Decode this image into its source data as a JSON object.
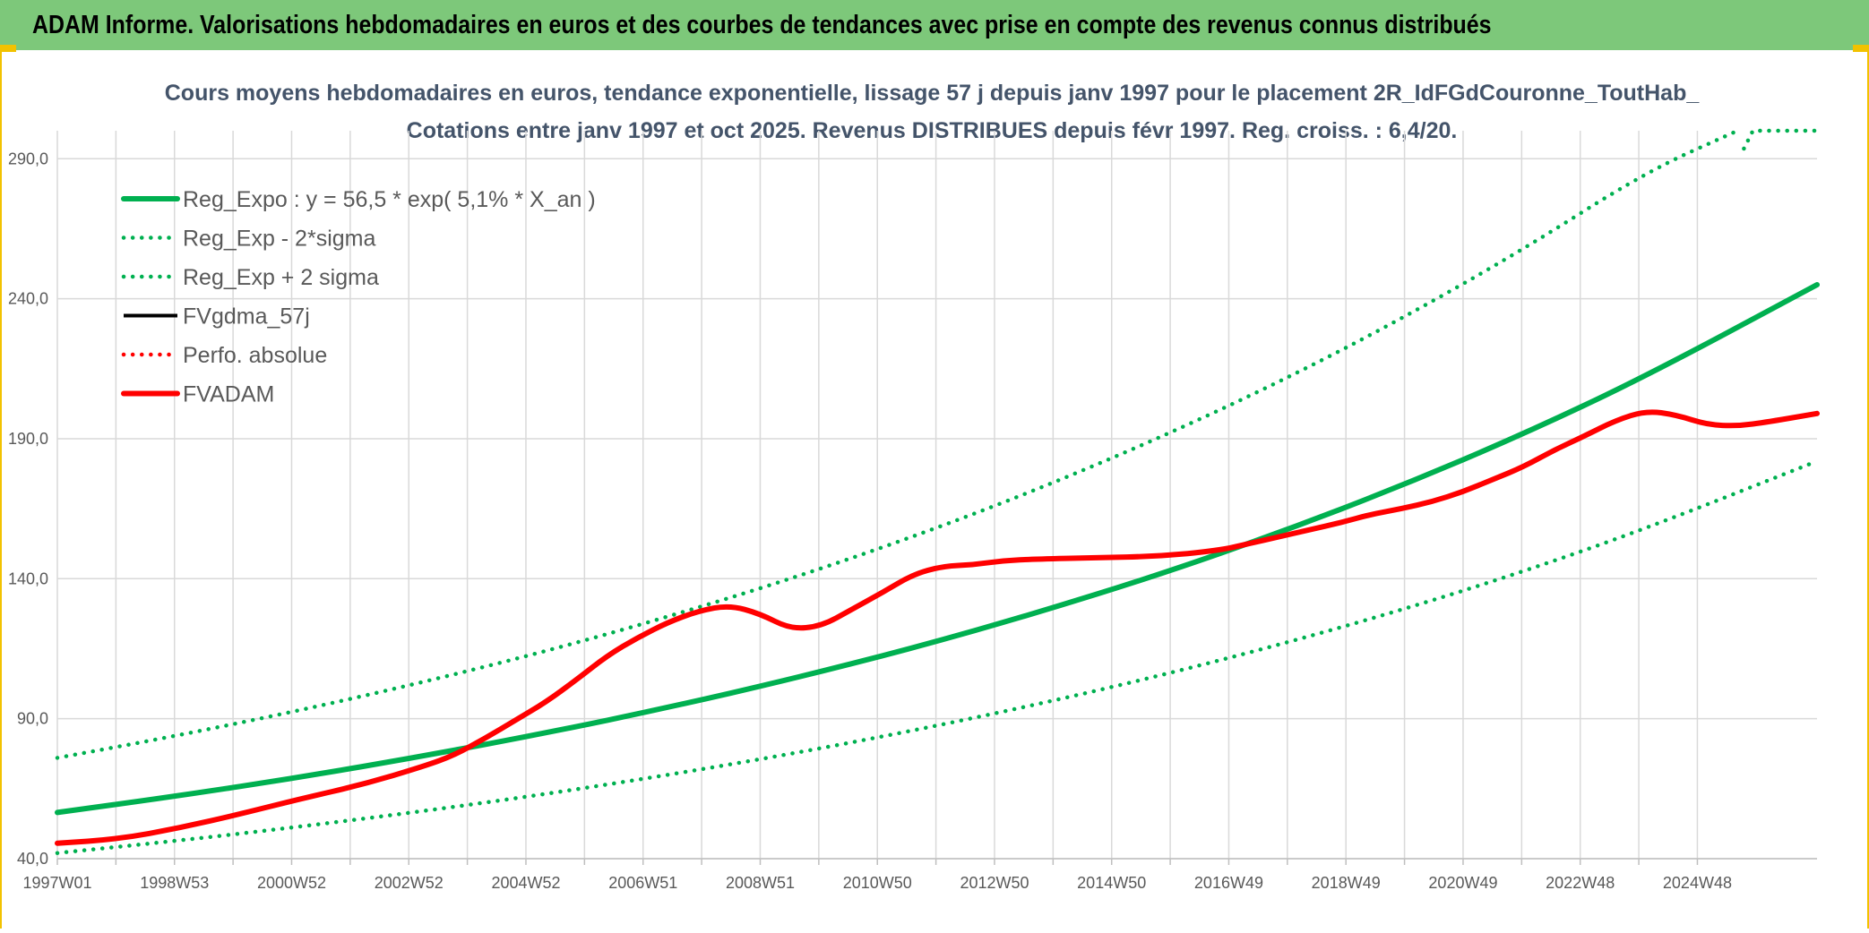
{
  "header": {
    "title": "ADAM Informe. Valorisations hebdomadaires en euros et des courbes de tendances avec prise en compte des revenus connus distribués"
  },
  "colors": {
    "header_bg": "#7dc87a",
    "trend_green": "#00b050",
    "price_red": "#ff0000",
    "black": "#000000",
    "grid": "#d9d9d9"
  },
  "chart_data": {
    "type": "line",
    "title": "Cours moyens hebdomadaires en euros, tendance exponentielle, lissage 57 j depuis janv 1997 pour le placement 2R_IdFGdCouronne_ToutHab_",
    "subtitle": "Cotations entre janv 1997 et oct 2025. Revenus DISTRIBUES depuis févr 1997. Reg. croiss. : 6,4/20.",
    "xlabel": "",
    "ylabel": "",
    "ylim": [
      40,
      300
    ],
    "yticks": [
      "40,0",
      "90,0",
      "140,0",
      "190,0",
      "240,0",
      "290,0"
    ],
    "yticks_values": [
      40,
      90,
      140,
      190,
      240,
      290
    ],
    "xticks": [
      "1997W01",
      "1998W53",
      "2000W52",
      "2002W52",
      "2004W52",
      "2006W51",
      "2008W51",
      "2010W50",
      "2012W50",
      "2014W50",
      "2016W49",
      "2018W49",
      "2020W49",
      "2022W48",
      "2024W48"
    ],
    "xlim": [
      1997.0,
      2025.8
    ],
    "grid": true,
    "legend_position": "top-left",
    "series": [
      {
        "name": "Reg_Expo : y = 56,5 * exp( 5,1% *  X_an )",
        "style": "solid-thick",
        "color": "#00b050",
        "x": [
          1997,
          1999,
          2001,
          2003,
          2005,
          2007,
          2009,
          2011,
          2013,
          2015,
          2017,
          2019,
          2021,
          2023,
          2025.8
        ],
        "values": [
          56.5,
          62.5,
          69.2,
          76.7,
          84.9,
          94.0,
          104.1,
          115.2,
          127.6,
          141.2,
          156.4,
          173.2,
          191.7,
          212.3,
          245.0
        ]
      },
      {
        "name": "Reg_Exp - 2*sigma",
        "style": "dotted",
        "color": "#00b050",
        "x": [
          1997,
          1999,
          2001,
          2003,
          2005,
          2007,
          2009,
          2011,
          2013,
          2015,
          2017,
          2019,
          2021,
          2023,
          2025.8
        ],
        "values": [
          42.0,
          46.5,
          51.5,
          57.0,
          63.1,
          69.9,
          77.4,
          85.7,
          94.9,
          105.1,
          116.4,
          128.8,
          142.6,
          157.9,
          182.0
        ]
      },
      {
        "name": "Reg_Exp + 2 sigma",
        "style": "dotted",
        "color": "#00b050",
        "x": [
          1997,
          1999,
          2001,
          2003,
          2005,
          2007,
          2009,
          2011,
          2013,
          2015,
          2017,
          2019,
          2021,
          2023,
          2024.5
        ],
        "values": [
          76.0,
          84.1,
          93.1,
          103.1,
          114.1,
          126.4,
          139.9,
          154.9,
          171.5,
          189.9,
          210.2,
          232.8,
          257.7,
          285.3,
          300.0
        ]
      },
      {
        "name": "FVgdma_57j",
        "style": "solid",
        "color": "#000000",
        "x": [
          1997,
          1998,
          1999,
          2000,
          2001,
          2002,
          2003,
          2003.5,
          2004,
          2004.5,
          2005,
          2005.5,
          2006,
          2006.5,
          2007,
          2007.5,
          2008,
          2008.5,
          2009,
          2009.5,
          2010,
          2010.5,
          2011,
          2011.5,
          2012,
          2012.5,
          2013,
          2014,
          2015,
          2016,
          2016.5,
          2017,
          2017.5,
          2018,
          2018.5,
          2019,
          2019.5,
          2020,
          2020.5,
          2021,
          2021.5,
          2022,
          2022.5,
          2023,
          2023.5,
          2024,
          2024.5,
          2025,
          2025.8
        ],
        "values": [
          45.5,
          47.0,
          51.0,
          56.0,
          61.5,
          66.5,
          73.0,
          77.0,
          83.0,
          89.5,
          96.0,
          104.0,
          112.5,
          119.0,
          124.5,
          128.5,
          130.5,
          127.5,
          122.0,
          123.0,
          129.0,
          135.0,
          141.5,
          144.5,
          145.0,
          146.5,
          147.0,
          147.5,
          148.0,
          150.0,
          152.5,
          155.0,
          157.5,
          160.0,
          163.0,
          165.0,
          167.5,
          171.0,
          175.5,
          180.0,
          186.0,
          191.0,
          196.5,
          200.0,
          198.5,
          195.0,
          194.5,
          196.0,
          199.0
        ]
      },
      {
        "name": "Perfo. absolue",
        "style": "dotted",
        "color": "#ff0000",
        "x": [
          1997,
          1998,
          1999,
          2000,
          2001,
          2002,
          2003,
          2003.5,
          2004,
          2004.5,
          2005,
          2005.5,
          2006,
          2006.5,
          2007,
          2007.5,
          2008,
          2008.5,
          2009,
          2009.5,
          2010,
          2010.5,
          2011,
          2011.5,
          2012,
          2012.5,
          2013,
          2014,
          2015,
          2016,
          2016.5,
          2017,
          2017.5,
          2018,
          2018.5,
          2019,
          2019.5,
          2020,
          2020.5,
          2021,
          2021.5,
          2022,
          2022.5,
          2023,
          2023.5,
          2024,
          2024.5,
          2025,
          2025.8
        ],
        "values": [
          45.5,
          47.0,
          51.0,
          56.0,
          61.5,
          66.5,
          73.0,
          77.0,
          83.0,
          89.5,
          96.0,
          104.0,
          112.5,
          119.0,
          124.5,
          128.5,
          130.5,
          127.5,
          122.0,
          123.0,
          129.0,
          135.0,
          141.5,
          144.5,
          145.0,
          146.5,
          147.0,
          147.5,
          148.0,
          150.0,
          152.5,
          155.0,
          157.5,
          160.0,
          163.0,
          165.0,
          167.5,
          171.0,
          175.5,
          180.0,
          186.0,
          191.0,
          196.5,
          200.0,
          198.5,
          195.0,
          194.5,
          196.0,
          199.0
        ]
      },
      {
        "name": "FVADAM",
        "style": "solid-thick",
        "color": "#ff0000",
        "x": [
          1997,
          1998,
          1999,
          2000,
          2001,
          2002,
          2003,
          2003.5,
          2004,
          2004.5,
          2005,
          2005.5,
          2006,
          2006.5,
          2007,
          2007.5,
          2008,
          2008.5,
          2009,
          2009.5,
          2010,
          2010.5,
          2011,
          2011.5,
          2012,
          2012.5,
          2013,
          2014,
          2015,
          2016,
          2016.5,
          2017,
          2017.5,
          2018,
          2018.5,
          2019,
          2019.5,
          2020,
          2020.5,
          2021,
          2021.5,
          2022,
          2022.5,
          2023,
          2023.5,
          2024,
          2024.5,
          2025,
          2025.8
        ],
        "values": [
          45.5,
          47.0,
          51.0,
          56.0,
          61.5,
          66.5,
          73.0,
          77.0,
          83.0,
          89.5,
          96.0,
          104.0,
          112.5,
          119.0,
          124.5,
          128.5,
          130.5,
          127.5,
          122.0,
          123.0,
          129.0,
          135.0,
          141.5,
          144.5,
          145.0,
          146.5,
          147.0,
          147.5,
          148.0,
          150.0,
          152.5,
          155.0,
          157.5,
          160.0,
          163.0,
          165.0,
          167.5,
          171.0,
          175.5,
          180.0,
          186.0,
          191.0,
          196.5,
          200.0,
          198.5,
          195.0,
          194.5,
          196.0,
          199.0
        ]
      }
    ],
    "plus_sigma_plateau": {
      "x_start": 2024.75,
      "x_end": 2025.8,
      "value": 300.0
    }
  }
}
